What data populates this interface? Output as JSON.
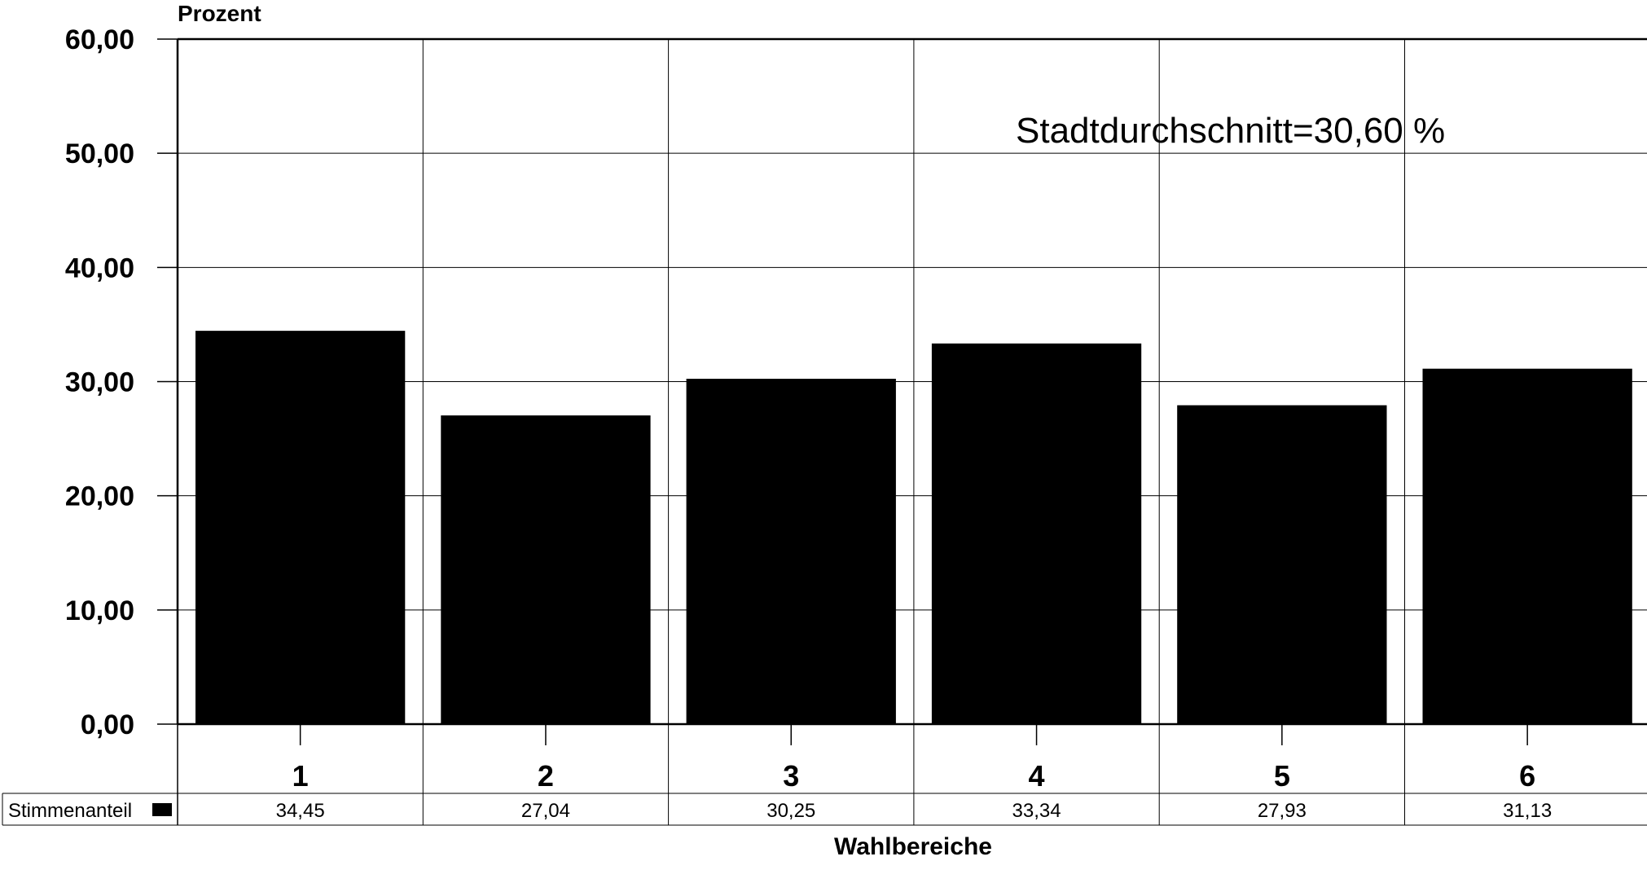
{
  "chart_data": {
    "type": "bar",
    "ylabel": "Prozent",
    "xlabel": "Wahlbereiche",
    "ylim": [
      0,
      60
    ],
    "yticks": [
      "0,00",
      "10,00",
      "20,00",
      "30,00",
      "40,00",
      "50,00",
      "60,00"
    ],
    "ytick_values": [
      0,
      10,
      20,
      30,
      40,
      50,
      60
    ],
    "categories": [
      "1",
      "2",
      "3",
      "4",
      "5",
      "6"
    ],
    "series": [
      {
        "name": "Stimmenanteil",
        "values": [
          34.45,
          27.04,
          30.25,
          33.34,
          27.93,
          31.13
        ],
        "labels": [
          "34,45",
          "27,04",
          "30,25",
          "33,34",
          "27,93",
          "31,13"
        ],
        "color": "#000000"
      }
    ],
    "annotation": "Stadtdurchschnitt=30,60 %",
    "grid": true,
    "legend": "data-table"
  }
}
